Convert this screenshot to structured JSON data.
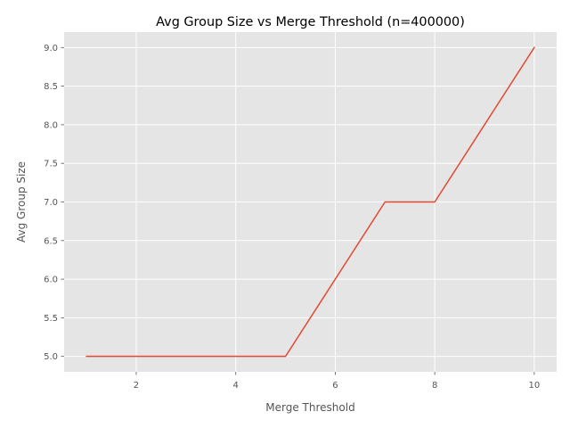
{
  "chart_data": {
    "type": "line",
    "title": "Avg Group Size vs Merge Threshold (n=400000)",
    "xlabel": "Merge Threshold",
    "ylabel": "Avg Group Size",
    "x": [
      1,
      2,
      3,
      4,
      5,
      6,
      7,
      8,
      9,
      10
    ],
    "series": [
      {
        "values": [
          5.0,
          5.0,
          5.0,
          5.0,
          5.0,
          6.0,
          7.0,
          7.0,
          8.0,
          9.0
        ],
        "color": "#E24A33"
      }
    ],
    "xlim": [
      0.55,
      10.45
    ],
    "ylim": [
      4.8,
      9.2
    ],
    "xticks": [
      2,
      4,
      6,
      8,
      10
    ],
    "xtick_labels": [
      "2",
      "4",
      "6",
      "8",
      "10"
    ],
    "yticks": [
      5.0,
      5.5,
      6.0,
      6.5,
      7.0,
      7.5,
      8.0,
      8.5,
      9.0
    ],
    "ytick_labels": [
      "5.0",
      "5.5",
      "6.0",
      "6.5",
      "7.0",
      "7.5",
      "8.0",
      "8.5",
      "9.0"
    ],
    "grid": true,
    "style": "ggplot",
    "background_color": "#E5E5E5",
    "grid_color": "#FFFFFF",
    "text_color": "#555555"
  }
}
